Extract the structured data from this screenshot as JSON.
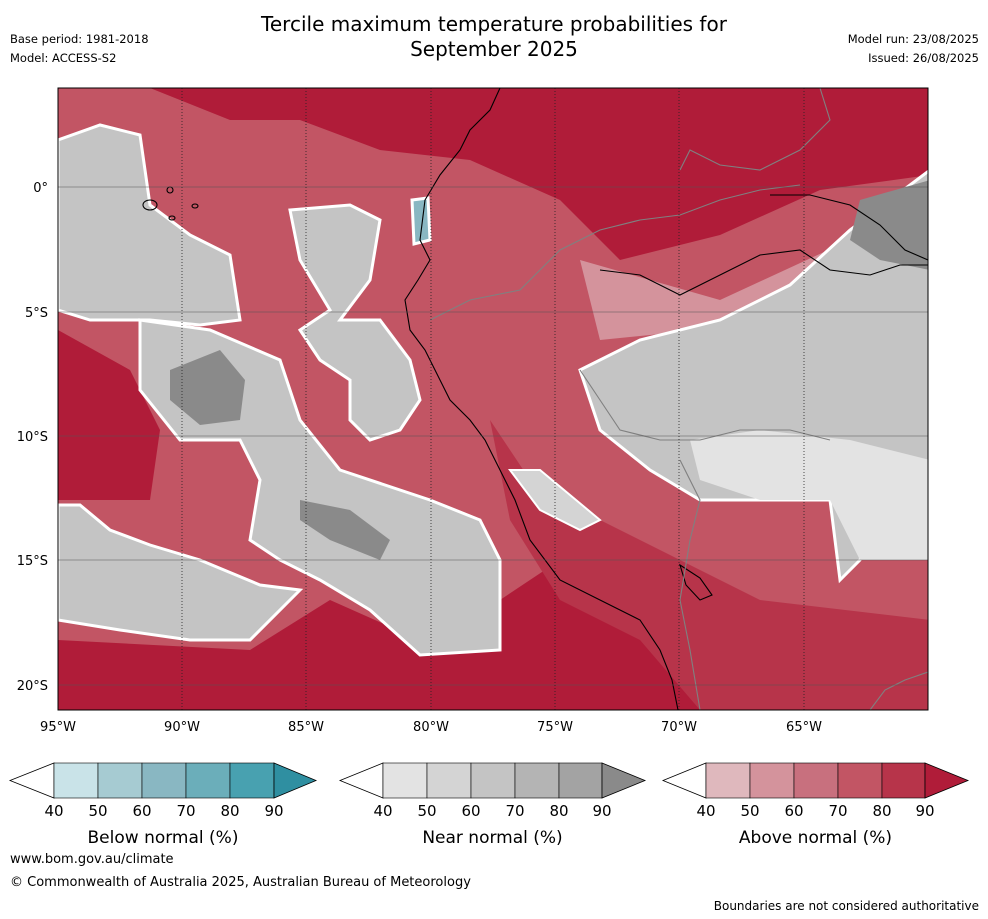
{
  "header": {
    "title_line1": "Tercile maximum temperature probabilities for",
    "title_line2": "September 2025",
    "base_period": "Base period: 1981-2018",
    "model": "Model: ACCESS-S2",
    "model_run": "Model run: 23/08/2025",
    "issued": "Issued: 26/08/2025"
  },
  "axes": {
    "lat_labels": [
      "0°",
      "5°S",
      "10°S",
      "15°S",
      "20°S"
    ],
    "lon_labels": [
      "95°W",
      "90°W",
      "85°W",
      "80°W",
      "75°W",
      "70°W",
      "65°W"
    ]
  },
  "colors": {
    "below": [
      "#c9e3e8",
      "#a6cbd2",
      "#89b7c2",
      "#6baeba",
      "#48a1b0",
      "#2f8fa1"
    ],
    "near": [
      "#e3e3e3",
      "#d4d4d4",
      "#c4c4c4",
      "#b4b4b4",
      "#a3a3a3",
      "#8a8a8a"
    ],
    "above": [
      "#dfb8bd",
      "#d4939c",
      "#c8707e",
      "#c25564",
      "#b7344a",
      "#b01c39"
    ],
    "ocean_bg": "#c25564",
    "grid": "#555555"
  },
  "colorbars": [
    {
      "id": "below",
      "label": "Below normal (%)",
      "ticks": [
        "40",
        "50",
        "60",
        "70",
        "80",
        "90"
      ]
    },
    {
      "id": "near",
      "label": "Near normal (%)",
      "ticks": [
        "40",
        "50",
        "60",
        "70",
        "80",
        "90"
      ]
    },
    {
      "id": "above",
      "label": "Above normal (%)",
      "ticks": [
        "40",
        "50",
        "60",
        "70",
        "80",
        "90"
      ]
    }
  ],
  "footer": {
    "url": "www.bom.gov.au/climate",
    "copyright": "© Commonwealth of Australia 2025, Australian Bureau of Meteorology",
    "disclaimer": "Boundaries are not considered authoritative"
  }
}
